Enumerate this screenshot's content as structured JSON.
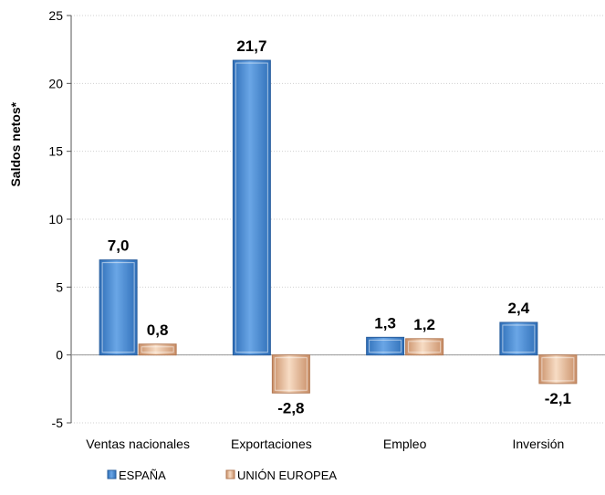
{
  "chart_data": {
    "type": "bar",
    "title": "",
    "xlabel": "",
    "ylabel": "Saldos netos*",
    "ylim": [
      -5,
      25
    ],
    "yticks": [
      -5,
      0,
      5,
      10,
      15,
      20,
      25
    ],
    "grid": true,
    "legend_position": "bottom-left",
    "categories": [
      "Ventas nacionales",
      "Exportaciones",
      "Empleo",
      "Inversión"
    ],
    "series": [
      {
        "name": "ESPAÑA",
        "values": [
          7.0,
          21.7,
          1.3,
          2.4
        ],
        "labels": [
          "7,0",
          "21,7",
          "1,3",
          "2,4"
        ],
        "color": "#4f8fd6"
      },
      {
        "name": "UNIÓN EUROPEA",
        "values": [
          0.8,
          -2.8,
          1.2,
          -2.1
        ],
        "labels": [
          "0,8",
          "-2,8",
          "1,2",
          "-2,1"
        ],
        "color": "#f2c9a8"
      }
    ]
  }
}
